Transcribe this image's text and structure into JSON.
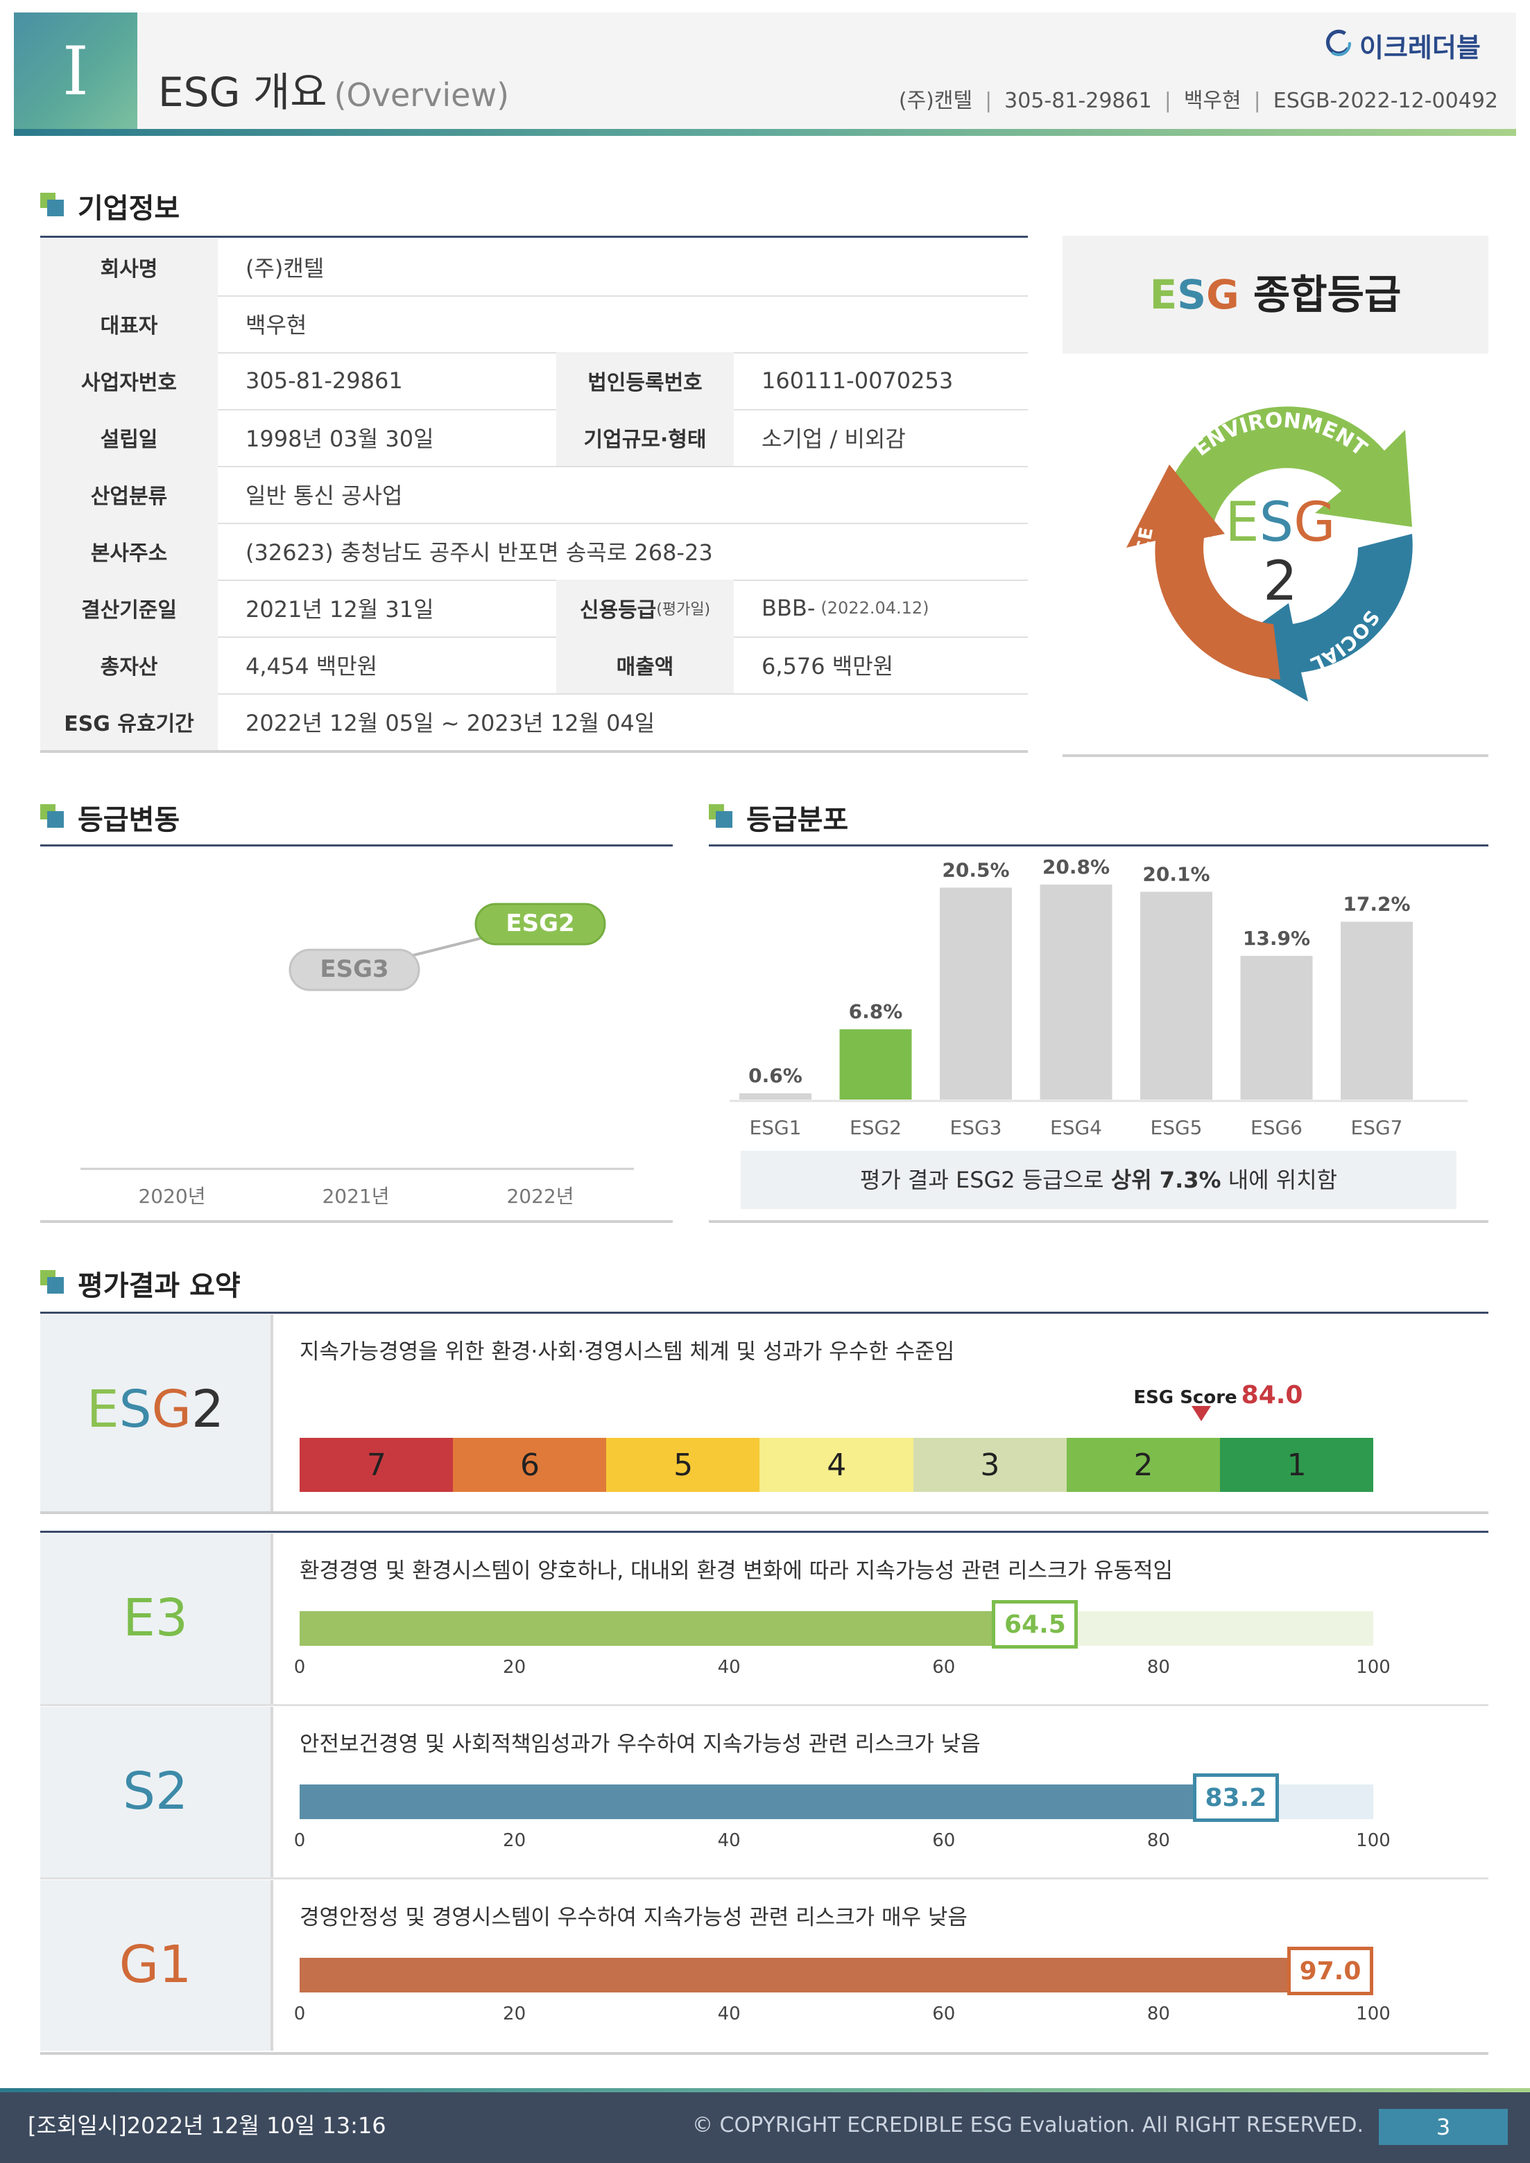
{
  "header": {
    "roman": "I",
    "title": "ESG 개요",
    "subtitle": "(Overview)",
    "logo": "이크레더블",
    "company": "(주)캔텔",
    "biz_no": "305-81-29861",
    "ceo": "백우현",
    "doc_no": "ESGB-2022-12-00492"
  },
  "sections": {
    "company": "기업정보",
    "grade_change": "등급변동",
    "grade_dist": "등급분포",
    "summary": "평가결과 요약"
  },
  "company": {
    "name_label": "회사명",
    "name": "(주)캔텔",
    "ceo_label": "대표자",
    "ceo": "백우현",
    "biz_no_label": "사업자번호",
    "biz_no": "305-81-29861",
    "corp_no_label": "법인등록번호",
    "corp_no": "160111-0070253",
    "founded_label": "설립일",
    "founded": "1998년 03월 30일",
    "size_label": "기업규모·형태",
    "size": "소기업 / 비외감",
    "industry_label": "산업분류",
    "industry": "일반 통신 공사업",
    "address_label": "본사주소",
    "address": "(32623) 충청남도 공주시 반포면 송곡로 268-23",
    "fiscal_label": "결산기준일",
    "fiscal": "2021년 12월 31일",
    "credit_label": "신용등급",
    "credit_label_sub": "(평가일)",
    "credit": "BBB-",
    "credit_date": "(2022.04.12)",
    "assets_label": "총자산",
    "assets": "4,454 백만원",
    "sales_label": "매출액",
    "sales": "6,576 백만원",
    "valid_label": "ESG 유효기간",
    "valid": "2022년 12월 05일 ~ 2023년 12월 04일"
  },
  "grade_card": {
    "e": "E",
    "s": "S",
    "g": "G",
    "title_rest": " 종합등급",
    "cycle_e": "ENVIRONMENT",
    "cycle_s": "SOCIAL",
    "cycle_g": "GOVERNANCE",
    "center_e": "E",
    "center_s": "S",
    "center_g": "G",
    "center_num": "2"
  },
  "grade_change": {
    "years": [
      "2020년",
      "2021년",
      "2022년"
    ],
    "grades": [
      null,
      "ESG3",
      "ESG2"
    ]
  },
  "chart_data": {
    "type": "bar",
    "categories": [
      "ESG1",
      "ESG2",
      "ESG3",
      "ESG4",
      "ESG5",
      "ESG6",
      "ESG7"
    ],
    "values": [
      0.6,
      6.8,
      20.5,
      20.8,
      20.1,
      13.9,
      17.2
    ],
    "labels": [
      "0.6%",
      "6.8%",
      "20.5%",
      "20.8%",
      "20.1%",
      "13.9%",
      "17.2%"
    ],
    "highlight": "ESG2",
    "ylim": [
      0,
      22
    ],
    "colors": {
      "default": "#d4d4d4",
      "highlight": "#7cbd4c"
    }
  },
  "dist_note": {
    "pre": "평가 결과 ESG2 등급으로 ",
    "bold": "상위 7.3%",
    "post": " 내에 위치함"
  },
  "summary": {
    "overall": {
      "e": "E",
      "s": "S",
      "g": "G",
      "num": "2",
      "desc": "지속가능경영을 위한 환경·사회·경영시스템 체계 및 성과가 우수한 수준임",
      "score_label": "ESG Score",
      "score": 84.0,
      "score_text": "84.0",
      "scale": [
        "7",
        "6",
        "5",
        "4",
        "3",
        "2",
        "1"
      ],
      "scale_colors": [
        "#c8393f",
        "#e07a3a",
        "#f7c936",
        "#f7ee8c",
        "#d3ddb0",
        "#7cbd4c",
        "#2e9a4e"
      ]
    },
    "ticks": [
      "0",
      "20",
      "40",
      "60",
      "80",
      "100"
    ],
    "items": [
      {
        "grade": "E3",
        "desc": "환경경영 및 환경시스템이 양호하나, 대내외 환경 변화에 따라 지속가능성 관련 리스크가 유동적임",
        "score": 64.5,
        "score_text": "64.5",
        "color": "#9cc264",
        "track": "#eef4e2"
      },
      {
        "grade": "S2",
        "desc": "안전보건경영 및 사회적책임성과가 우수하여 지속가능성 관련 리스크가 낮음",
        "score": 83.2,
        "score_text": "83.2",
        "color": "#5a8ea8",
        "track": "#e4eef4"
      },
      {
        "grade": "G1",
        "desc": "경영안정성 및 경영시스템이 우수하여 지속가능성 관련 리스크가 매우 낮음",
        "score": 97.0,
        "score_text": "97.0",
        "color": "#c4704a",
        "track": "#f6e8e0"
      }
    ],
    "grade_colors": {
      "E": "#7cbd4c",
      "S": "#3d8aa8",
      "G": "#d06a38"
    }
  },
  "footer": {
    "left": "[조회일시]2022년 12월 10일 13:16",
    "right": "© COPYRIGHT ECREDIBLE ESG Evaluation. All RIGHT RESERVED.",
    "page": "3"
  }
}
